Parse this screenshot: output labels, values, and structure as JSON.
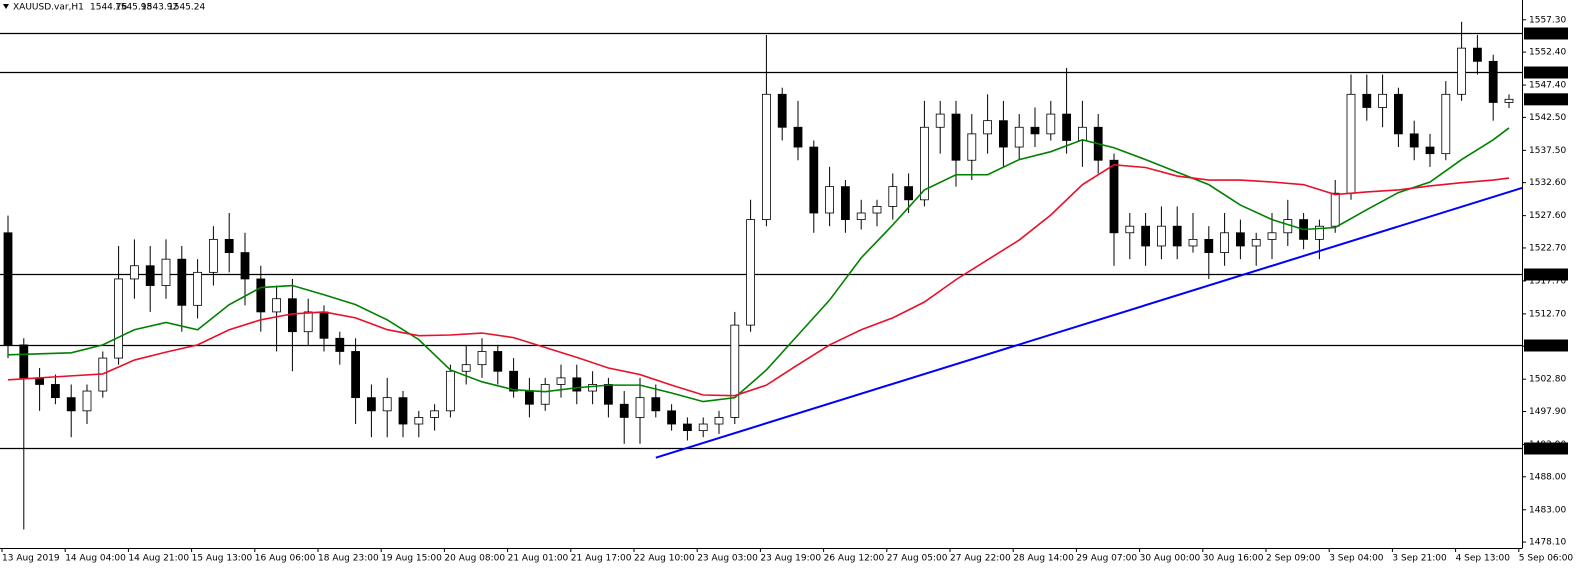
{
  "chart_data": {
    "type": "candlestick",
    "title": "XAUUSD.var,H1",
    "open": [
      1525,
      1508,
      1503,
      1502,
      1500,
      1498,
      1501,
      1506,
      1518,
      1520,
      1517,
      1521,
      1514,
      1519,
      1524,
      1522,
      1518,
      1513,
      1515,
      1510,
      1513,
      1509,
      1507,
      1500,
      1498,
      1500,
      1496,
      1497,
      1498,
      1504,
      1505,
      1507,
      1504,
      1501,
      1499,
      1502,
      1503,
      1501,
      1502,
      1499,
      1497,
      1500,
      1498,
      1496,
      1495,
      1496,
      1497,
      1511,
      1527,
      1546,
      1541,
      1538,
      1528,
      1532,
      1527,
      1528,
      1529,
      1532,
      1530,
      1541,
      1543,
      1536,
      1540,
      1542,
      1538,
      1541,
      1540,
      1543,
      1539,
      1541,
      1536,
      1525,
      1526,
      1523,
      1526,
      1523,
      1524,
      1522,
      1525,
      1523,
      1524,
      1525,
      1527,
      1524,
      1526,
      1531,
      1546,
      1544,
      1546,
      1540,
      1538,
      1537,
      1546,
      1553,
      1551,
      1544.76
    ],
    "high": [
      1527.6,
      1509,
      1504.5,
      1503.5,
      1502,
      1502,
      1507,
      1523,
      1524,
      1523,
      1524,
      1523,
      1521,
      1526,
      1528,
      1525,
      1520,
      1517,
      1518,
      1515,
      1514,
      1510,
      1509,
      1502,
      1503,
      1501,
      1498,
      1499,
      1505,
      1508,
      1509,
      1508,
      1506,
      1503,
      1503,
      1505,
      1505,
      1504,
      1503,
      1501,
      1503,
      1502,
      1499,
      1497,
      1497,
      1498,
      1513,
      1530,
      1555,
      1547,
      1545,
      1539,
      1535,
      1533,
      1530,
      1530,
      1534,
      1534,
      1545,
      1545,
      1545,
      1543,
      1546,
      1545,
      1543,
      1544,
      1545,
      1550,
      1545,
      1543,
      1537,
      1528,
      1528,
      1529,
      1529,
      1528,
      1526,
      1528,
      1527,
      1525,
      1528,
      1530,
      1528,
      1527,
      1533,
      1549,
      1549,
      1549,
      1547,
      1542,
      1540,
      1548,
      1557,
      1555,
      1552,
      1545.98
    ],
    "low": [
      1506,
      1480,
      1498,
      1499,
      1494,
      1496,
      1500,
      1505,
      1515,
      1513,
      1515,
      1510,
      1512,
      1517,
      1519,
      1514,
      1510,
      1507,
      1504,
      1508,
      1507,
      1505,
      1496,
      1494,
      1494,
      1494,
      1494,
      1495,
      1497,
      1502,
      1503,
      1502,
      1500,
      1497,
      1498,
      1500,
      1499,
      1499,
      1497,
      1493,
      1493,
      1497,
      1495,
      1493.5,
      1494,
      1494.5,
      1496,
      1510,
      1526,
      1539,
      1536,
      1525,
      1526,
      1525,
      1525.5,
      1526,
      1527,
      1528,
      1529,
      1537,
      1532,
      1533,
      1537,
      1535,
      1536,
      1538,
      1539,
      1537,
      1535,
      1534,
      1520,
      1521,
      1520,
      1521,
      1521,
      1522,
      1518,
      1520,
      1521,
      1520,
      1521,
      1523,
      1522.5,
      1521,
      1525,
      1530,
      1542,
      1541,
      1538,
      1536,
      1535,
      1536,
      1545,
      1549,
      1542,
      1543.92
    ],
    "close": [
      1508,
      1503,
      1502,
      1500,
      1498,
      1501,
      1506,
      1518,
      1520,
      1517,
      1521,
      1514,
      1519,
      1524,
      1522,
      1518,
      1513,
      1515,
      1510,
      1513,
      1509,
      1507,
      1500,
      1498,
      1500,
      1496,
      1497,
      1498,
      1504,
      1505,
      1507,
      1504,
      1501,
      1499,
      1502,
      1503,
      1501,
      1502,
      1499,
      1497,
      1500,
      1498,
      1496,
      1495,
      1496,
      1497,
      1511,
      1527,
      1546,
      1541,
      1538,
      1528,
      1532,
      1527,
      1528,
      1529,
      1532,
      1530,
      1541,
      1543,
      1536,
      1540,
      1542,
      1538,
      1541,
      1540,
      1543,
      1539,
      1541,
      1536,
      1525,
      1526,
      1523,
      1526,
      1523,
      1524,
      1522,
      1525,
      1523,
      1524,
      1525,
      1527,
      1524,
      1526,
      1531,
      1546,
      1544,
      1546,
      1540,
      1538,
      1537,
      1546,
      1553,
      1551,
      1544.76,
      1545.24
    ],
    "bull_color": "#ffffff",
    "bear_color": "#000000",
    "wick_color": "#000000",
    "series": [
      {
        "color": "#008000",
        "x": [
          0,
          4,
          6,
          8,
          10,
          12,
          14,
          16,
          18,
          20,
          22,
          24,
          26,
          28,
          30,
          32,
          34,
          36,
          38,
          40,
          42,
          44,
          46,
          48,
          50,
          52,
          54,
          56,
          58,
          60,
          62,
          64,
          66,
          68,
          70,
          72,
          74,
          76,
          78,
          80,
          82,
          84,
          86,
          88,
          90,
          92,
          94,
          95
        ],
        "values": [
          1506.5,
          1506.8,
          1508,
          1510.3,
          1511.4,
          1510.3,
          1514.1,
          1516.7,
          1517,
          1515.6,
          1514.1,
          1511.8,
          1508.8,
          1504.2,
          1502.4,
          1501.2,
          1500.9,
          1501.5,
          1501.9,
          1501.9,
          1500.7,
          1499.4,
          1500,
          1504.2,
          1509.5,
          1514.8,
          1521.2,
          1526.2,
          1531.5,
          1533.8,
          1533.8,
          1536.1,
          1537.3,
          1539.1,
          1537.9,
          1536.1,
          1534.2,
          1532.3,
          1529.2,
          1527,
          1525.5,
          1525.8,
          1528.5,
          1531.1,
          1532.7,
          1536.1,
          1539.1,
          1540.9
        ]
      },
      {
        "color": "#e8102a",
        "x": [
          0,
          4,
          6,
          8,
          10,
          12,
          14,
          16,
          18,
          20,
          22,
          24,
          26,
          28,
          30,
          32,
          34,
          36,
          38,
          40,
          42,
          44,
          46,
          48,
          50,
          52,
          54,
          56,
          58,
          60,
          62,
          64,
          66,
          68,
          70,
          72,
          74,
          76,
          78,
          80,
          82,
          84,
          86,
          88,
          90,
          92,
          94,
          95
        ],
        "values": [
          1502.7,
          1503.3,
          1503.6,
          1505.7,
          1506.9,
          1508,
          1510.3,
          1511.8,
          1512.7,
          1513,
          1512.1,
          1510.3,
          1509.4,
          1509.5,
          1509.8,
          1509.1,
          1507.6,
          1506.1,
          1504.5,
          1503.5,
          1501.9,
          1500.4,
          1500.3,
          1501.9,
          1505,
          1508,
          1510.3,
          1512.1,
          1514.5,
          1517.9,
          1520.9,
          1523.9,
          1527.7,
          1532.3,
          1535.3,
          1534.9,
          1533.6,
          1533,
          1533,
          1532.7,
          1532.3,
          1530.8,
          1531.2,
          1531.5,
          1532.1,
          1532.6,
          1533,
          1533.3
        ]
      }
    ],
    "trendline": {
      "color": "#0000ff",
      "x": [
        41,
        96.3
      ],
      "values": [
        1490.9,
        1531.8
      ]
    },
    "hlines": [
      {
        "value": 1555.35,
        "label": "1555.35"
      },
      {
        "value": 1549.31,
        "label": "1549.31"
      },
      {
        "value": 1518.81,
        "label": "1518.81"
      },
      {
        "value": 1508,
        "label": "1508.00"
      },
      {
        "value": 1492.43,
        "label": "1492.43"
      }
    ],
    "ylim": [
      1477.2,
      1560.3
    ],
    "yticks": [
      {
        "value": 1557.3,
        "label": "1557.30"
      },
      {
        "value": 1552.4,
        "label": "1552.40"
      },
      {
        "value": 1547.4,
        "label": "1547.40"
      },
      {
        "value": 1542.5,
        "label": "1542.50"
      },
      {
        "value": 1537.5,
        "label": "1537.50"
      },
      {
        "value": 1532.6,
        "label": "1532.60"
      },
      {
        "value": 1527.6,
        "label": "1527.60"
      },
      {
        "value": 1522.7,
        "label": "1522.70"
      },
      {
        "value": 1517.7,
        "label": "1517.70"
      },
      {
        "value": 1512.7,
        "label": "1512.70"
      },
      {
        "value": 1507.8,
        "label": "1507.80"
      },
      {
        "value": 1502.8,
        "label": "1502.80"
      },
      {
        "value": 1497.9,
        "label": "1497.90"
      },
      {
        "value": 1492.9,
        "label": "1492.90"
      },
      {
        "value": 1488,
        "label": "1488.00"
      },
      {
        "value": 1483,
        "label": "1483.00"
      },
      {
        "value": 1478.1,
        "label": "1478.10"
      }
    ],
    "xticks": [
      {
        "value": 0,
        "label": "13 Aug 2019"
      },
      {
        "value": 4,
        "label": "14 Aug 04:00"
      },
      {
        "value": 8,
        "label": "14 Aug 21:00"
      },
      {
        "value": 12,
        "label": "15 Aug 13:00"
      },
      {
        "value": 16,
        "label": "16 Aug 06:00"
      },
      {
        "value": 20,
        "label": "18 Aug 23:00"
      },
      {
        "value": 24,
        "label": "19 Aug 15:00"
      },
      {
        "value": 28,
        "label": "20 Aug 08:00"
      },
      {
        "value": 32,
        "label": "21 Aug 01:00"
      },
      {
        "value": 36,
        "label": "21 Aug 17:00"
      },
      {
        "value": 40,
        "label": "22 Aug 10:00"
      },
      {
        "value": 44,
        "label": "23 Aug 03:00"
      },
      {
        "value": 48,
        "label": "23 Aug 19:00"
      },
      {
        "value": 52,
        "label": "26 Aug 12:00"
      },
      {
        "value": 56,
        "label": "27 Aug 05:00"
      },
      {
        "value": 60,
        "label": "27 Aug 22:00"
      },
      {
        "value": 64,
        "label": "28 Aug 14:00"
      },
      {
        "value": 68,
        "label": "29 Aug 07:00"
      },
      {
        "value": 72,
        "label": "30 Aug 00:00"
      },
      {
        "value": 76,
        "label": "30 Aug 16:00"
      },
      {
        "value": 80,
        "label": "2 Sep 09:00"
      },
      {
        "value": 84,
        "label": "3 Sep 04:00"
      },
      {
        "value": 88,
        "label": "3 Sep 21:00"
      },
      {
        "value": 92,
        "label": "4 Sep 13:00"
      },
      {
        "value": 96,
        "label": "5 Sep 06:00"
      }
    ]
  }
}
